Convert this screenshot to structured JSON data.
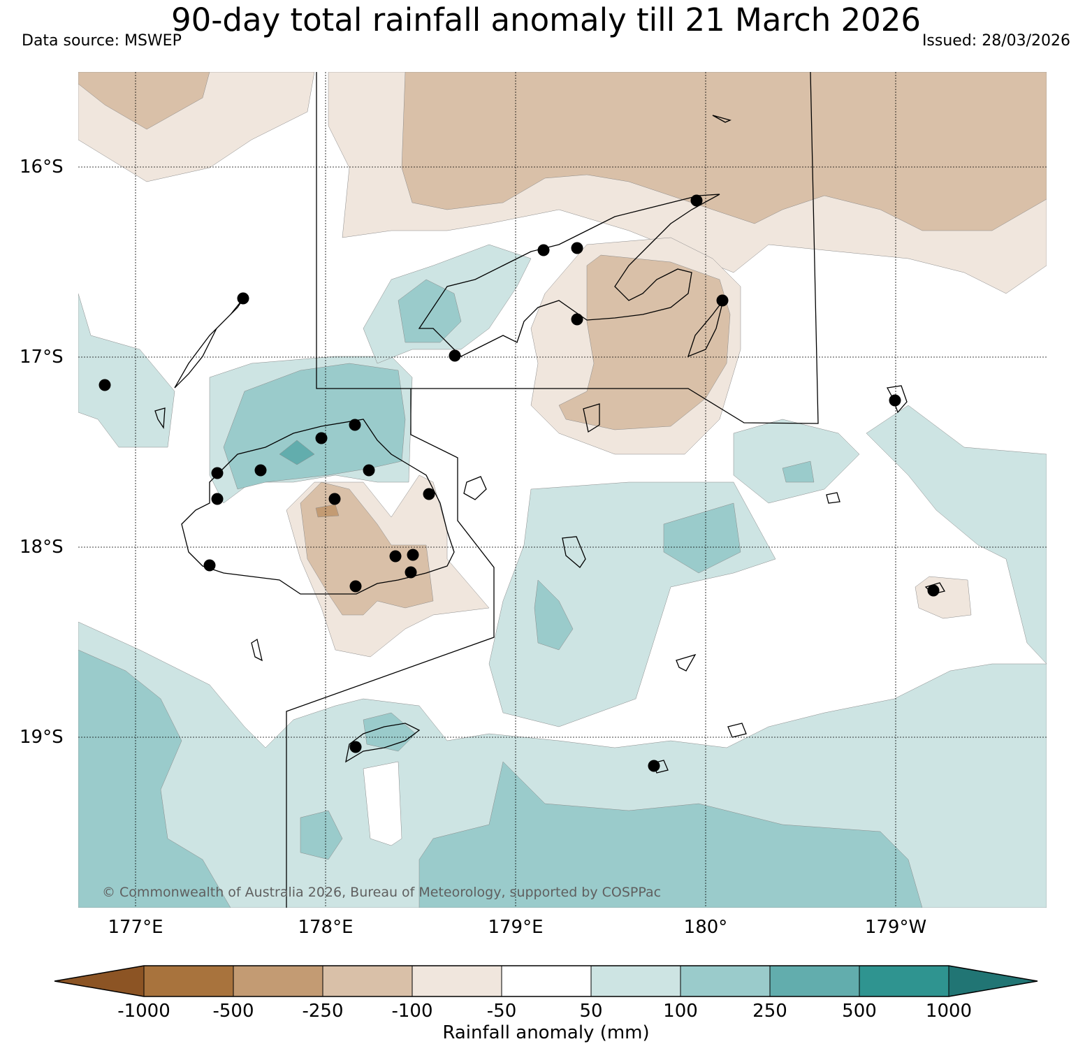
{
  "title": "90-day total rainfall anomaly till 21 March 2026",
  "data_source": "Data source: MSWEP",
  "issued": "Issued: 28/03/2026",
  "copyright": "© Commonwealth of Australia 2026, Bureau of Meteorology, supported by COSPPac",
  "lat_labels": [
    "16°S",
    "17°S",
    "18°S",
    "19°S"
  ],
  "lon_labels": [
    "177°E",
    "178°E",
    "179°E",
    "180°",
    "179°W"
  ],
  "colorbar": {
    "label": "Rainfall anomaly (mm)",
    "ticks": [
      "-1000",
      "-500",
      "-250",
      "-100",
      "-50",
      "50",
      "100",
      "250",
      "500",
      "1000"
    ],
    "colors": [
      "#8c5424",
      "#a8733d",
      "#c39b73",
      "#d9c0a8",
      "#f0e6dd",
      "#ffffff",
      "#cde4e3",
      "#9acbcb",
      "#62adad",
      "#2f9490",
      "#217574"
    ]
  }
}
